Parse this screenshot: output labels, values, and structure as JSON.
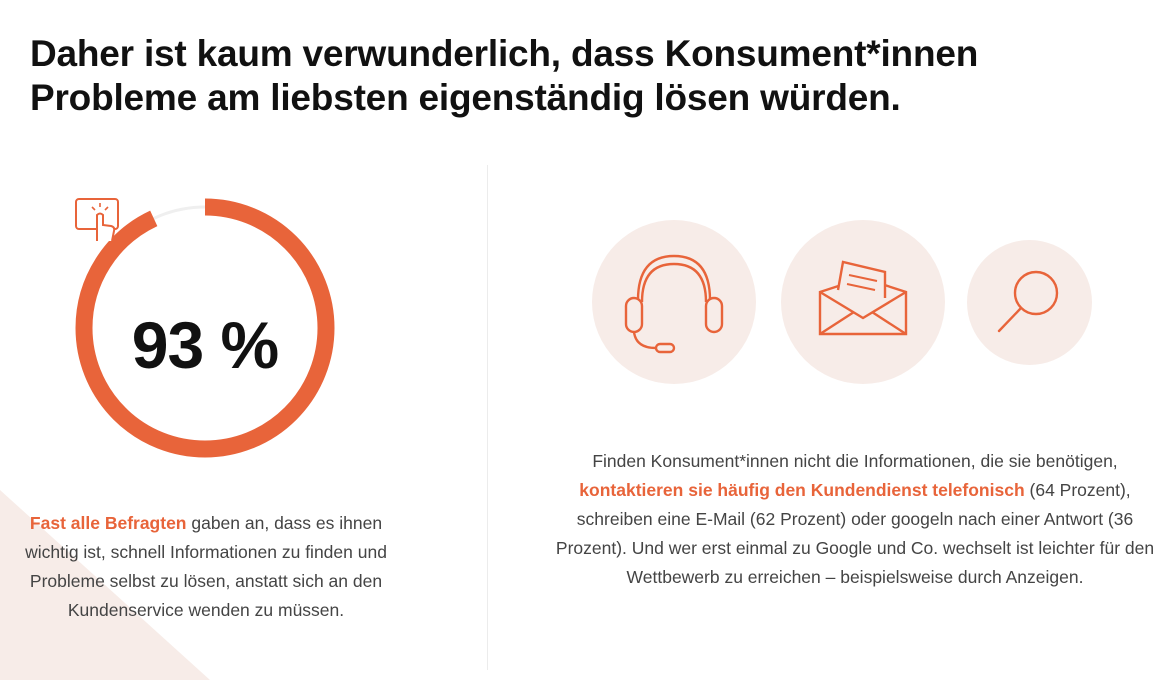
{
  "headline": {
    "line1": "Daher ist kaum verwunderlich, dass Konsument*innen",
    "line2": "Probleme am liebsten eigenständig lösen würden."
  },
  "stat": {
    "value_label": "93 %",
    "fraction": 0.93,
    "accent_color": "#e8643a",
    "track_color": "#efefef"
  },
  "left_text": {
    "highlight": "Fast alle Befragten",
    "rest": " gaben an, dass es ihnen wichtig ist, schnell Informationen zu finden und Probleme selbst zu lösen, anstatt sich an den Kundenservice wenden zu müssen."
  },
  "right_text": {
    "part1": "Finden Konsument*innen nicht die Informationen, die sie benötigen, ",
    "highlight": "kontaktieren sie häufig den Kundendienst telefonisch",
    "part2": " (64 Prozent), schreiben eine E-Mail (62 Prozent) oder googeln nach einer Antwort (36 Prozent). Und wer erst einmal zu Google und Co. wechselt ist leichter für den Wettbewerb zu erreichen – beispielsweise durch Anzeigen."
  },
  "icons": [
    "touch-icon",
    "headset-icon",
    "envelope-icon",
    "search-icon"
  ],
  "colors": {
    "accent": "#e8643a",
    "circle_bg": "#f7ece8"
  }
}
